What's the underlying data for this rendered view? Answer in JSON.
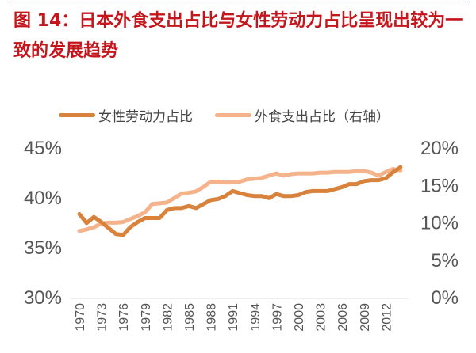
{
  "title": "图 14：日本外食支出占比与女性劳动力占比呈现出较为一致的发展趋势",
  "colors": {
    "title": "#c4161c",
    "female": "#d9823b",
    "food": "#f5b38c"
  },
  "chart_data": {
    "type": "line",
    "title": "图 14：日本外食支出占比与女性劳动力占比呈现出较为一致的发展趋势",
    "x": [
      1970,
      1971,
      1972,
      1973,
      1974,
      1975,
      1976,
      1977,
      1978,
      1979,
      1980,
      1981,
      1982,
      1983,
      1984,
      1985,
      1986,
      1987,
      1988,
      1989,
      1990,
      1991,
      1992,
      1993,
      1994,
      1995,
      1996,
      1997,
      1998,
      1999,
      2000,
      2001,
      2002,
      2003,
      2004,
      2005,
      2006,
      2007,
      2008,
      2009,
      2010,
      2011,
      2012,
      2013,
      2014
    ],
    "x_ticks": [
      "1970",
      "1973",
      "1976",
      "1979",
      "1982",
      "1985",
      "1988",
      "1991",
      "1994",
      "1997",
      "2000",
      "2003",
      "2006",
      "2009",
      "2012"
    ],
    "y_left": {
      "range": [
        30,
        45
      ],
      "ticks": [
        "30%",
        "35%",
        "40%",
        "45%"
      ]
    },
    "y_right": {
      "range": [
        0,
        20
      ],
      "ticks": [
        "0%",
        "5%",
        "10%",
        "15%",
        "20%"
      ]
    },
    "legend_position": "top",
    "grid": false,
    "series": [
      {
        "name": "女性劳动力占比",
        "axis": "left",
        "color": "#d9823b",
        "values": [
          38.3,
          37.4,
          38.0,
          37.5,
          36.9,
          36.3,
          36.2,
          37.0,
          37.5,
          37.9,
          37.9,
          37.9,
          38.7,
          38.9,
          38.9,
          39.1,
          38.9,
          39.3,
          39.7,
          39.8,
          40.1,
          40.6,
          40.4,
          40.2,
          40.1,
          40.1,
          39.9,
          40.3,
          40.1,
          40.1,
          40.2,
          40.5,
          40.6,
          40.6,
          40.6,
          40.8,
          41.0,
          41.3,
          41.3,
          41.6,
          41.7,
          41.7,
          41.9,
          42.5,
          43.0
        ]
      },
      {
        "name": "外食支出占比（右轴）",
        "axis": "right",
        "color": "#f5b38c",
        "values": [
          8.8,
          9.0,
          9.3,
          9.8,
          9.9,
          9.9,
          10.0,
          10.4,
          10.8,
          11.3,
          12.4,
          12.5,
          12.6,
          13.2,
          13.8,
          13.9,
          14.1,
          14.7,
          15.4,
          15.4,
          15.3,
          15.3,
          15.4,
          15.7,
          15.8,
          15.9,
          16.2,
          16.5,
          16.2,
          16.4,
          16.5,
          16.5,
          16.5,
          16.6,
          16.6,
          16.7,
          16.7,
          16.7,
          16.8,
          16.8,
          16.6,
          16.2,
          16.7,
          17.1,
          16.9
        ]
      }
    ]
  }
}
